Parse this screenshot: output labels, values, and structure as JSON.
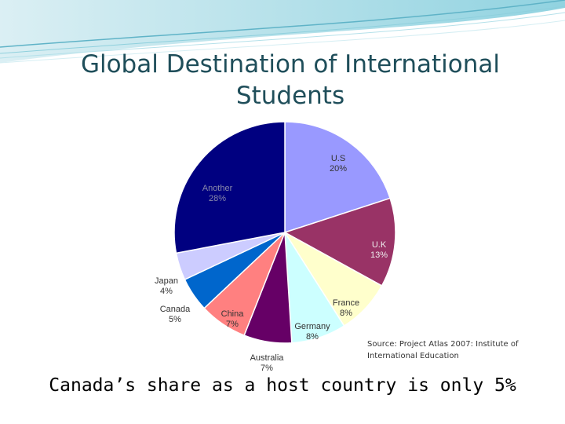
{
  "slide": {
    "title_line1": "Global Destination of International",
    "title_line2": "Students",
    "source_line1": "Source: Project Atlas 2007: Institute of",
    "source_line2": "International Education",
    "footer": "Canada’s share as a host country is only 5%"
  },
  "chart_data": {
    "type": "pie",
    "title": "",
    "slices": [
      {
        "label": "U.S",
        "value": 20,
        "value_label": "20%",
        "color": "#9999ff"
      },
      {
        "label": "U.K",
        "value": 13,
        "value_label": "13%",
        "color": "#993366"
      },
      {
        "label": "France",
        "value": 8,
        "value_label": "8%",
        "color": "#ffffcc"
      },
      {
        "label": "Germany",
        "value": 8,
        "value_label": "8%",
        "color": "#ccffff"
      },
      {
        "label": "Australia",
        "value": 7,
        "value_label": "7%",
        "color": "#660066"
      },
      {
        "label": "China",
        "value": 7,
        "value_label": "7%",
        "color": "#ff8080"
      },
      {
        "label": "Canada",
        "value": 5,
        "value_label": "5%",
        "color": "#0066cc"
      },
      {
        "label": "Japan",
        "value": 4,
        "value_label": "4%",
        "color": "#ccccff"
      },
      {
        "label": "Another",
        "value": 28,
        "value_label": "28%",
        "color": "#000080"
      }
    ]
  }
}
